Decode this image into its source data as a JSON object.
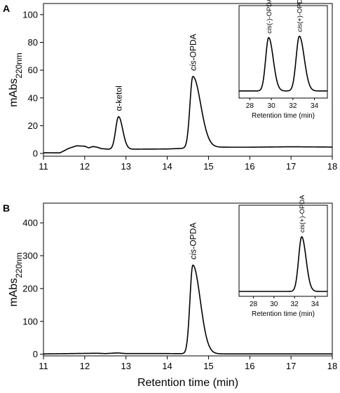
{
  "chart_data": [
    {
      "panel": "A",
      "type": "line",
      "ylabel_main": "mAbs",
      "ylabel_sub": "220nm",
      "xlim": [
        11,
        18
      ],
      "ylim": [
        -2,
        108
      ],
      "xticks": [
        11,
        12,
        13,
        14,
        15,
        16,
        17,
        18
      ],
      "yticks": [
        0,
        20,
        40,
        60,
        80,
        100
      ],
      "baseline": [
        [
          11,
          0.5
        ],
        [
          11.4,
          0.4
        ],
        [
          11.6,
          3.5
        ],
        [
          11.8,
          5.5
        ],
        [
          12.0,
          5.2
        ],
        [
          12.1,
          4.0
        ],
        [
          12.2,
          5.0
        ],
        [
          12.3,
          4.5
        ],
        [
          12.4,
          3.5
        ],
        [
          12.6,
          3.0
        ],
        [
          14.0,
          3.2
        ],
        [
          15.0,
          4.5
        ],
        [
          16.0,
          4.5
        ],
        [
          17.0,
          4.8
        ],
        [
          18.0,
          4.6
        ]
      ],
      "peaks": [
        {
          "label_prefix": "α",
          "label_main": "-ketol",
          "italic": false,
          "center": 12.82,
          "height": 23.5,
          "sigma_left": 0.07,
          "sigma_right": 0.1
        },
        {
          "label_prefix": "cis",
          "label_main": "-OPDA",
          "italic": true,
          "center": 14.62,
          "height": 51.5,
          "sigma_left": 0.07,
          "sigma_right": 0.19
        }
      ],
      "inset": {
        "xlim": [
          27,
          35.2
        ],
        "xticks": [
          28,
          30,
          32,
          34
        ],
        "xlabel": "Retention time (min)",
        "baseline": 0.05,
        "peaks": [
          {
            "label_prefix": "cis",
            "label_main": "(-)-OPDA",
            "center": 29.75,
            "height": 0.75,
            "sigma_left": 0.28,
            "sigma_right": 0.42
          },
          {
            "label_prefix": "cis",
            "label_main": "(+)-OPDA",
            "center": 32.6,
            "height": 0.77,
            "sigma_left": 0.3,
            "sigma_right": 0.45
          }
        ]
      }
    },
    {
      "panel": "B",
      "type": "line",
      "ylabel_main": "mAbs",
      "ylabel_sub": "220nm",
      "xlabel": "Retention time (min)",
      "xlim": [
        11,
        18
      ],
      "ylim": [
        -5,
        460
      ],
      "xticks": [
        11,
        12,
        13,
        14,
        15,
        16,
        17,
        18
      ],
      "yticks": [
        0,
        100,
        200,
        300,
        400
      ],
      "baseline": [
        [
          11,
          1
        ],
        [
          12.3,
          3
        ],
        [
          12.5,
          2
        ],
        [
          12.8,
          4
        ],
        [
          13.0,
          2
        ],
        [
          14.0,
          2
        ],
        [
          15.5,
          1
        ],
        [
          18.0,
          1
        ]
      ],
      "peaks": [
        {
          "label_prefix": "cis",
          "label_main": "-OPDA",
          "italic": true,
          "center": 14.62,
          "height": 270,
          "sigma_left": 0.07,
          "sigma_right": 0.18
        }
      ],
      "inset": {
        "xlim": [
          26.6,
          35.2
        ],
        "xticks": [
          28,
          30,
          32,
          34
        ],
        "xlabel": "Retention time (min)",
        "baseline": 0.02,
        "peaks": [
          {
            "label_prefix": "cis",
            "label_main": "(+)-OPDA",
            "center": 32.7,
            "height": 0.78,
            "sigma_left": 0.3,
            "sigma_right": 0.42
          }
        ]
      }
    }
  ]
}
